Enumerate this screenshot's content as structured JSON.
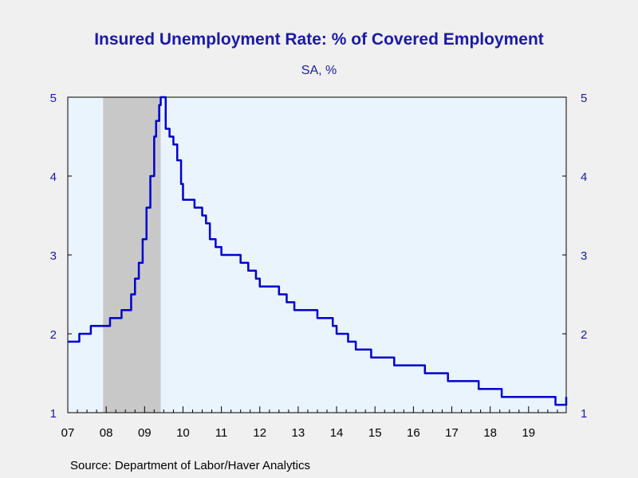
{
  "chart_data": {
    "type": "line",
    "title": "Insured Unemployment Rate: % of Covered Employment",
    "subtitle": "SA, %",
    "source": "Source:  Department of Labor/Haver Analytics",
    "ylim": [
      1,
      5
    ],
    "y_ticks": [
      1,
      2,
      3,
      4,
      5
    ],
    "x_ticks": [
      "07",
      "08",
      "09",
      "10",
      "11",
      "12",
      "13",
      "14",
      "15",
      "16",
      "17",
      "18",
      "19"
    ],
    "xlim": [
      2007.0,
      2019.98
    ],
    "recession_shading": [
      2007.92,
      2009.42
    ],
    "colors": {
      "line": "#0000cc",
      "text": "#1a1aa6",
      "plot_bg": "#eaf4fd",
      "recession": "#c8c8c8"
    },
    "grid": false,
    "series": [
      {
        "x": [
          2007.0,
          2007.2,
          2007.3,
          2007.45,
          2007.6,
          2007.75,
          2007.9,
          2008.1,
          2008.25,
          2008.4,
          2008.55,
          2008.65,
          2008.75,
          2008.85,
          2008.95,
          2009.05,
          2009.15,
          2009.25,
          2009.3,
          2009.38,
          2009.42,
          2009.5,
          2009.55,
          2009.6,
          2009.65,
          2009.7,
          2009.75,
          2009.85,
          2009.95,
          2010.0,
          2010.1,
          2010.2,
          2010.3,
          2010.4,
          2010.5,
          2010.6,
          2010.7,
          2010.85,
          2011.0,
          2011.1,
          2011.2,
          2011.3,
          2011.5,
          2011.7,
          2011.9,
          2012.0,
          2012.1,
          2012.3,
          2012.5,
          2012.7,
          2012.9,
          2013.1,
          2013.3,
          2013.5,
          2013.7,
          2013.9,
          2014.0,
          2014.1,
          2014.3,
          2014.5,
          2014.7,
          2014.9,
          2015.1,
          2015.3,
          2015.5,
          2015.7,
          2015.9,
          2016.1,
          2016.3,
          2016.5,
          2016.7,
          2016.9,
          2017.1,
          2017.3,
          2017.5,
          2017.7,
          2017.9,
          2018.1,
          2018.3,
          2018.5,
          2018.7,
          2018.9,
          2019.1,
          2019.3,
          2019.5,
          2019.7,
          2019.98
        ],
        "y": [
          1.9,
          1.9,
          2.0,
          2.0,
          2.1,
          2.1,
          2.1,
          2.2,
          2.2,
          2.3,
          2.3,
          2.5,
          2.7,
          2.9,
          3.2,
          3.6,
          4.0,
          4.5,
          4.7,
          4.9,
          5.0,
          5.0,
          4.6,
          4.6,
          4.5,
          4.5,
          4.4,
          4.2,
          3.9,
          3.7,
          3.7,
          3.7,
          3.6,
          3.6,
          3.5,
          3.4,
          3.2,
          3.1,
          3.0,
          3.0,
          3.0,
          3.0,
          2.9,
          2.8,
          2.7,
          2.6,
          2.6,
          2.6,
          2.5,
          2.4,
          2.3,
          2.3,
          2.3,
          2.2,
          2.2,
          2.1,
          2.0,
          2.0,
          1.9,
          1.8,
          1.8,
          1.7,
          1.7,
          1.7,
          1.6,
          1.6,
          1.6,
          1.6,
          1.5,
          1.5,
          1.5,
          1.4,
          1.4,
          1.4,
          1.4,
          1.3,
          1.3,
          1.3,
          1.2,
          1.2,
          1.2,
          1.2,
          1.2,
          1.2,
          1.2,
          1.1,
          1.2
        ]
      }
    ]
  }
}
